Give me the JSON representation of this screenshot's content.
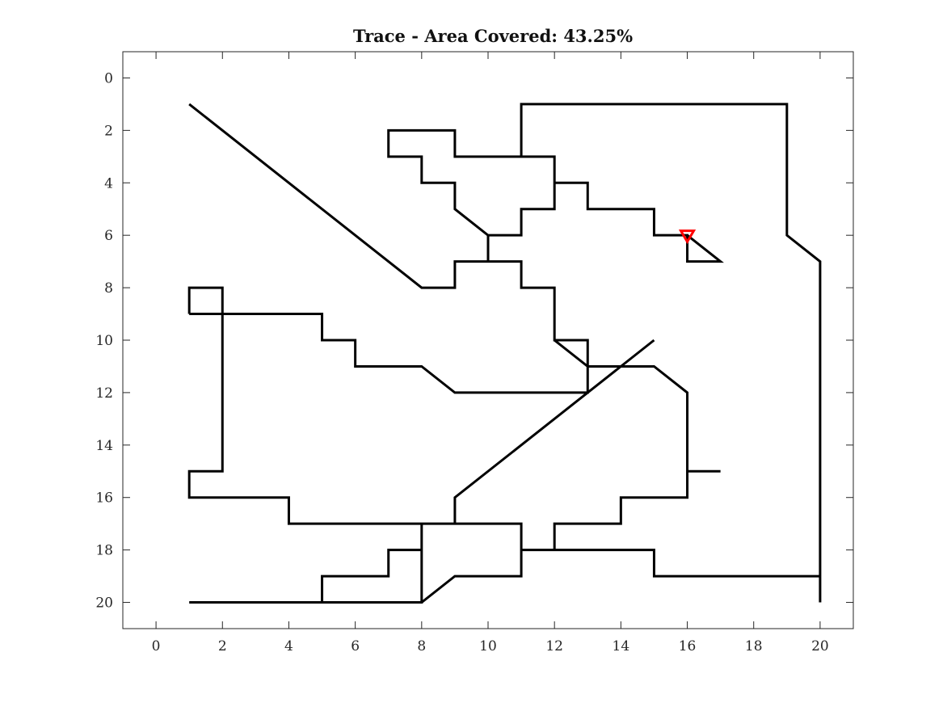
{
  "chart_data": {
    "type": "line",
    "title": "Trace - Area Covered: 43.25%",
    "xlabel": "",
    "ylabel": "",
    "xlim": [
      -1,
      21
    ],
    "ylim": [
      21,
      -1
    ],
    "y_reversed": true,
    "grid": false,
    "xticks": [
      0,
      2,
      4,
      6,
      8,
      10,
      12,
      14,
      16,
      18,
      20
    ],
    "yticks": [
      0,
      2,
      4,
      6,
      8,
      10,
      12,
      14,
      16,
      18,
      20
    ],
    "xtick_labels": [
      "0",
      "2",
      "4",
      "6",
      "8",
      "10",
      "12",
      "14",
      "16",
      "18",
      "20"
    ],
    "ytick_labels": [
      "0",
      "2",
      "4",
      "6",
      "8",
      "10",
      "12",
      "14",
      "16",
      "18",
      "20"
    ],
    "line_color": "#000000",
    "marker_color": "#ff0000",
    "series": [
      {
        "values": [
          [
            1,
            20
          ],
          [
            5,
            20
          ],
          [
            5,
            19
          ],
          [
            7,
            19
          ],
          [
            7,
            18
          ],
          [
            8,
            18
          ],
          [
            8,
            17
          ],
          [
            9,
            17
          ],
          [
            11,
            17
          ],
          [
            11,
            18
          ],
          [
            12,
            18
          ],
          [
            12,
            17
          ],
          [
            14,
            17
          ],
          [
            14,
            16
          ],
          [
            16,
            16
          ],
          [
            16,
            15
          ],
          [
            17,
            15
          ],
          [
            16,
            15
          ],
          [
            16,
            12
          ],
          [
            15,
            11
          ],
          [
            13,
            11
          ],
          [
            13,
            12
          ],
          [
            9,
            12
          ],
          [
            8,
            11
          ],
          [
            6,
            11
          ],
          [
            6,
            10
          ],
          [
            5,
            10
          ],
          [
            5,
            9
          ],
          [
            2,
            9
          ],
          [
            2,
            15
          ],
          [
            1,
            15
          ],
          [
            1,
            16
          ],
          [
            4,
            16
          ],
          [
            4,
            17
          ],
          [
            9,
            17
          ],
          [
            9,
            16
          ],
          [
            15,
            10
          ],
          [
            9,
            16
          ],
          [
            9,
            17
          ],
          [
            8,
            17
          ],
          [
            8,
            20
          ],
          [
            1,
            20
          ],
          [
            8,
            20
          ],
          [
            9,
            19
          ],
          [
            11,
            19
          ],
          [
            11,
            18
          ],
          [
            15,
            18
          ],
          [
            15,
            19
          ],
          [
            20,
            19
          ],
          [
            20,
            20
          ],
          [
            20,
            7
          ],
          [
            19,
            6
          ],
          [
            19,
            1
          ],
          [
            11,
            1
          ],
          [
            11,
            3
          ],
          [
            9,
            3
          ],
          [
            9,
            2
          ],
          [
            7,
            2
          ],
          [
            7,
            3
          ],
          [
            8,
            3
          ],
          [
            8,
            4
          ],
          [
            9,
            4
          ],
          [
            9,
            5
          ],
          [
            10,
            6
          ],
          [
            10,
            7
          ],
          [
            9,
            7
          ],
          [
            9,
            8
          ],
          [
            8,
            8
          ],
          [
            1,
            1
          ],
          [
            8,
            8
          ],
          [
            9,
            8
          ],
          [
            9,
            7
          ],
          [
            11,
            7
          ],
          [
            11,
            8
          ],
          [
            12,
            8
          ],
          [
            12,
            10
          ],
          [
            13,
            10
          ],
          [
            13,
            12
          ],
          [
            13,
            11
          ],
          [
            12,
            10
          ],
          [
            12,
            8
          ],
          [
            11,
            8
          ],
          [
            11,
            7
          ],
          [
            10,
            7
          ],
          [
            10,
            6
          ],
          [
            11,
            6
          ],
          [
            11,
            5
          ],
          [
            12,
            5
          ],
          [
            12,
            3
          ],
          [
            11,
            3
          ],
          [
            12,
            3
          ],
          [
            12,
            4
          ],
          [
            13,
            4
          ],
          [
            13,
            5
          ],
          [
            15,
            5
          ],
          [
            15,
            6
          ],
          [
            16,
            6
          ],
          [
            16,
            7
          ],
          [
            17,
            7
          ],
          [
            16,
            6
          ]
        ]
      }
    ],
    "extra_segments": [
      {
        "values": [
          [
            1,
            9
          ],
          [
            1,
            8
          ],
          [
            2,
            8
          ],
          [
            2,
            9
          ],
          [
            1,
            9
          ]
        ]
      }
    ],
    "end_marker": {
      "shape": "triangle-down",
      "values": [
        16,
        6
      ]
    }
  }
}
